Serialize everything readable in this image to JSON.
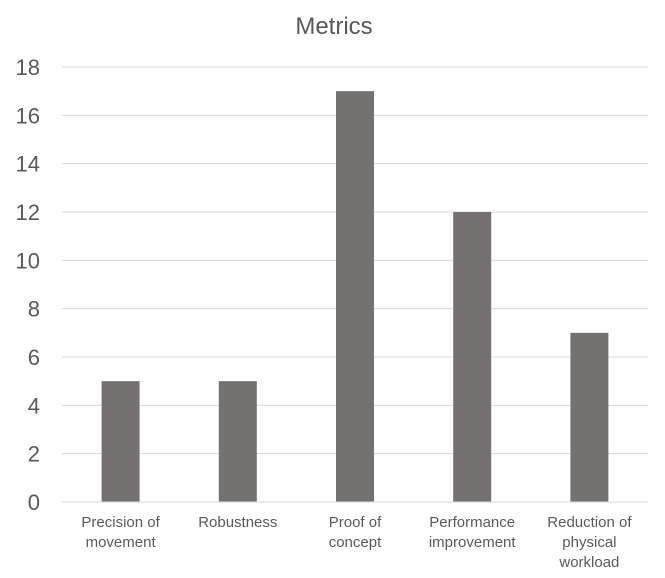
{
  "chart_data": {
    "type": "bar",
    "title": "Metrics",
    "categories": [
      [
        "Precision of",
        "movement"
      ],
      [
        "Robustness"
      ],
      [
        "Proof of",
        "concept"
      ],
      [
        "Performance",
        "improvement"
      ],
      [
        "Reduction of",
        "physical",
        "workload"
      ]
    ],
    "values": [
      5,
      5,
      17,
      12,
      7
    ],
    "ylim": [
      0,
      18
    ],
    "yticks": [
      0,
      2,
      4,
      6,
      8,
      10,
      12,
      14,
      16,
      18
    ],
    "grid": true,
    "legend": "none",
    "bar_color": "#767171"
  }
}
